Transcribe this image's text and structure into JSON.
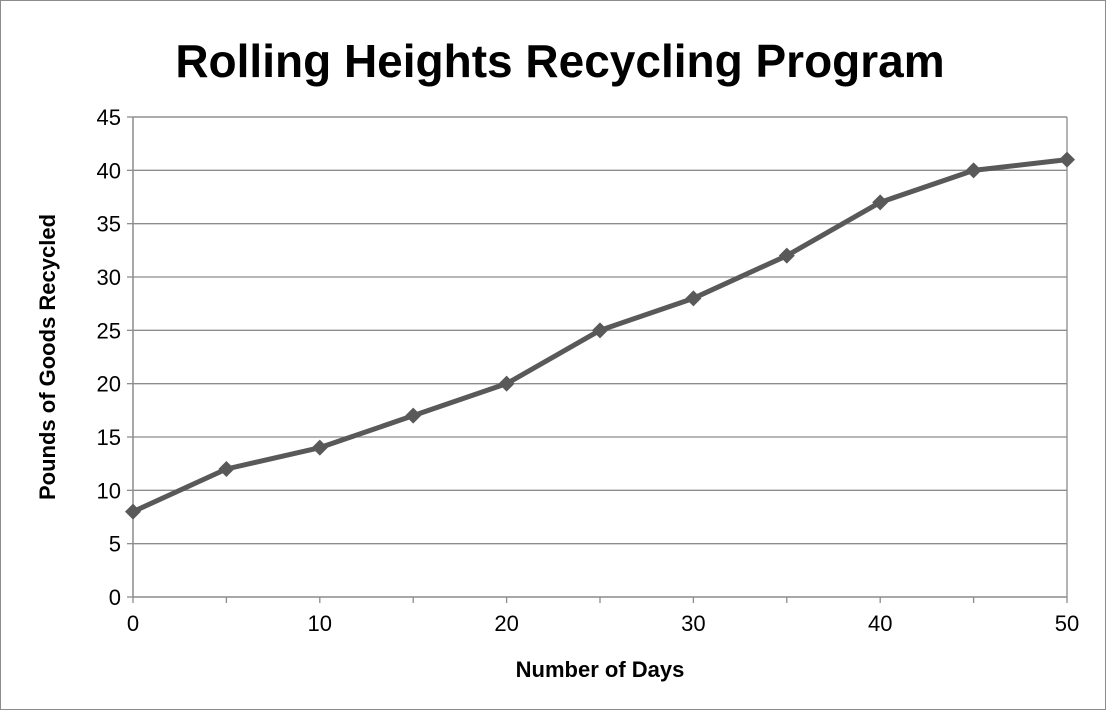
{
  "chart_data": {
    "type": "line",
    "title": "Rolling Heights Recycling Program",
    "xlabel": "Number of Days",
    "ylabel": "Pounds of Goods Recycled",
    "xlim": [
      0,
      50
    ],
    "ylim": [
      0,
      45
    ],
    "xticks": [
      0,
      10,
      20,
      30,
      40,
      50
    ],
    "yticks": [
      0,
      5,
      10,
      15,
      20,
      25,
      30,
      35,
      40,
      45
    ],
    "grid": "horizontal",
    "legend": "none",
    "series": [
      {
        "x": [
          0,
          5,
          10,
          15,
          20,
          25,
          30,
          35,
          40,
          45,
          50
        ],
        "y": [
          8,
          12,
          14,
          17,
          20,
          25,
          28,
          32,
          37,
          40,
          41
        ],
        "marker": "diamond",
        "color": "#595959"
      }
    ]
  }
}
